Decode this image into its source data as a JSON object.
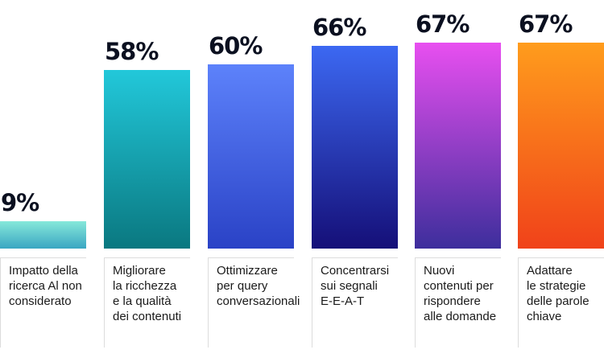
{
  "chart_data": {
    "type": "bar",
    "categories": [
      "Impatto della\nricerca Al non\nconsiderato",
      "Migliorare\nla ricchezza\ne la qualità\ndei contenuti",
      "Ottimizzare\nper query\nconversazionali",
      "Concentrarsi\nsui segnali\nE-E-A-T",
      "Nuovi\ncontenuti per\nrispondere\nalle domande",
      "Adattare\nle strategie\ndelle parole\nchiave"
    ],
    "values": [
      9,
      58,
      60,
      66,
      67,
      67
    ],
    "data_labels": [
      "9%",
      "58%",
      "60%",
      "66%",
      "67%",
      "67%"
    ],
    "unit": "%",
    "ylim": [
      0,
      67
    ],
    "grid": false,
    "colors": [
      [
        "#86e8da",
        "#3aa6c2"
      ],
      [
        "#22c8da",
        "#0a7880"
      ],
      [
        "#5d82fb",
        "#2a42c6"
      ],
      [
        "#3c68f2",
        "#150f78"
      ],
      [
        "#e84ff0",
        "#3d2e9c"
      ],
      [
        "#ff9c1c",
        "#f0421a"
      ]
    ]
  }
}
